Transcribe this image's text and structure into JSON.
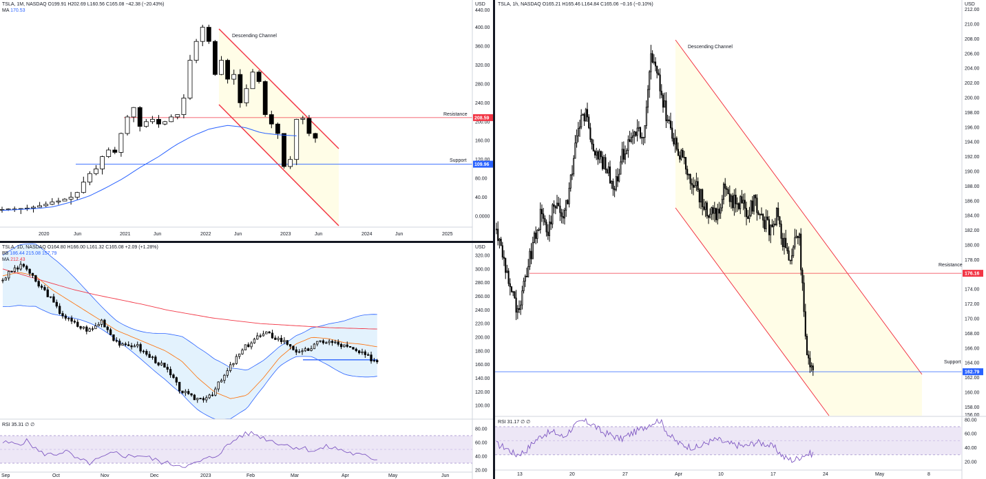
{
  "panels": {
    "monthly": {
      "legend": "TSLA, 1M, NASDAQ  O199.91  H202.69  L160.56  C165.08  −42.38 (−20.43%)",
      "ma_label": "MA",
      "ma_value": "170.53",
      "currency": "USD",
      "annotations": {
        "channel": "Descending Channel",
        "resistance": "Resistance",
        "support": "Support"
      },
      "price_tags": {
        "resistance": "208.59",
        "support": "109.96"
      },
      "price_ticks": [
        "400.00",
        "360.00",
        "320.00",
        "280.00",
        "240.00",
        "200.00",
        "160.00",
        "120.00",
        "80.00",
        "40.00",
        "0.0000"
      ],
      "top_partial_tick": "440.00",
      "time_ticks": [
        "2020",
        "Jun",
        "2021",
        "Jun",
        "2022",
        "Jun",
        "2023",
        "Jun",
        "2024",
        "Jun",
        "2025"
      ]
    },
    "daily": {
      "legend": "TSLA, 1D, NASDAQ  O164.80  H166.00  L161.32  C165.08  +2.09 (+1.28%)",
      "bb_label": "BB",
      "bb_values": "186.44  215.08  157.79",
      "ma_label": "MA",
      "ma_value": "212.43",
      "currency": "USD",
      "price_ticks": [
        "320.00",
        "300.00",
        "280.00",
        "260.00",
        "240.00",
        "220.00",
        "200.00",
        "180.00",
        "160.00",
        "140.00",
        "120.00",
        "100.00"
      ],
      "rsi_legend": "RSI  35.31  ∅  ∅",
      "rsi_ticks": [
        "80.00",
        "60.00",
        "40.00",
        "20.00"
      ],
      "time_ticks": [
        "Sep",
        "Oct",
        "Nov",
        "Dec",
        "2023",
        "Feb",
        "Mar",
        "Apr",
        "May",
        "Jun"
      ]
    },
    "hourly": {
      "legend": "TSLA, 1h, NASDAQ  O165.21  H165.46  L164.84  C165.06  −0.16 (−0.10%)",
      "currency": "USD",
      "annotations": {
        "channel": "Descending Channel",
        "resistance": "Resistance",
        "support": "Support"
      },
      "price_tags": {
        "resistance": "176.16",
        "support": "162.79"
      },
      "price_ticks": [
        "210.00",
        "208.00",
        "206.00",
        "204.00",
        "202.00",
        "200.00",
        "198.00",
        "196.00",
        "194.00",
        "192.00",
        "190.00",
        "188.00",
        "186.00",
        "184.00",
        "182.00",
        "180.00",
        "178.00",
        "176.00",
        "174.00",
        "172.00",
        "170.00",
        "168.00",
        "166.00",
        "164.00",
        "162.00",
        "160.00",
        "158.00"
      ],
      "top_partial_tick": "212.00",
      "bottom_partial_tick": "156.00",
      "rsi_legend": "RSI  31.17  ∅  ∅",
      "rsi_ticks": [
        "80.00",
        "60.00",
        "40.00",
        "20.00"
      ],
      "time_ticks": [
        "13",
        "20",
        "27",
        "Apr",
        "10",
        "17",
        "24",
        "May",
        "8"
      ]
    }
  },
  "colors": {
    "bull": "#ffffff",
    "bear": "#000000",
    "channel": "#f23645",
    "channel_fill": "#fffde7",
    "ma": "#2962ff",
    "support": "#2962ff",
    "resistance": "#f23645",
    "bb_fill": "#e3f2fd",
    "ema": "#ff6d00",
    "rsi": "#7e57c2",
    "rsi_band": "#ede7f6"
  }
}
